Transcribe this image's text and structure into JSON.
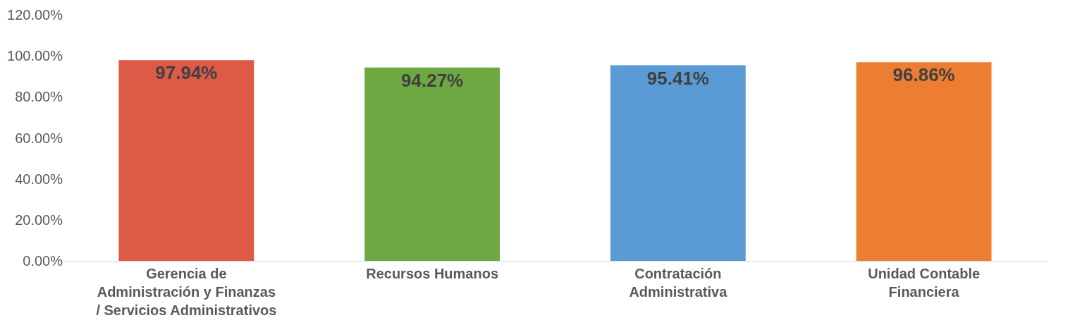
{
  "chart_data": {
    "type": "bar",
    "categories": [
      "Gerencia de\nAdministración y Finanzas\n/ Servicios Administrativos",
      "Recursos Humanos",
      "Contratación\nAdministrativa",
      "Unidad Contable\nFinanciera"
    ],
    "values": [
      97.94,
      94.27,
      95.41,
      96.86
    ],
    "colors": [
      "#dc5a46",
      "#6ea843",
      "#5b9bd5",
      "#ed7d31"
    ],
    "value_labels": [
      "97.94%",
      "94.27%",
      "95.41%",
      "96.86%"
    ],
    "ylim": [
      0,
      120
    ],
    "yticks": [
      {
        "value": 0,
        "label": "0.00%"
      },
      {
        "value": 20,
        "label": "20.00%"
      },
      {
        "value": 40,
        "label": "40.00%"
      },
      {
        "value": 60,
        "label": "60.00%"
      },
      {
        "value": 80,
        "label": "80.00%"
      },
      {
        "value": 100,
        "label": "100.00%"
      },
      {
        "value": 120,
        "label": "120.00%"
      }
    ],
    "grid": false,
    "legend": false
  }
}
